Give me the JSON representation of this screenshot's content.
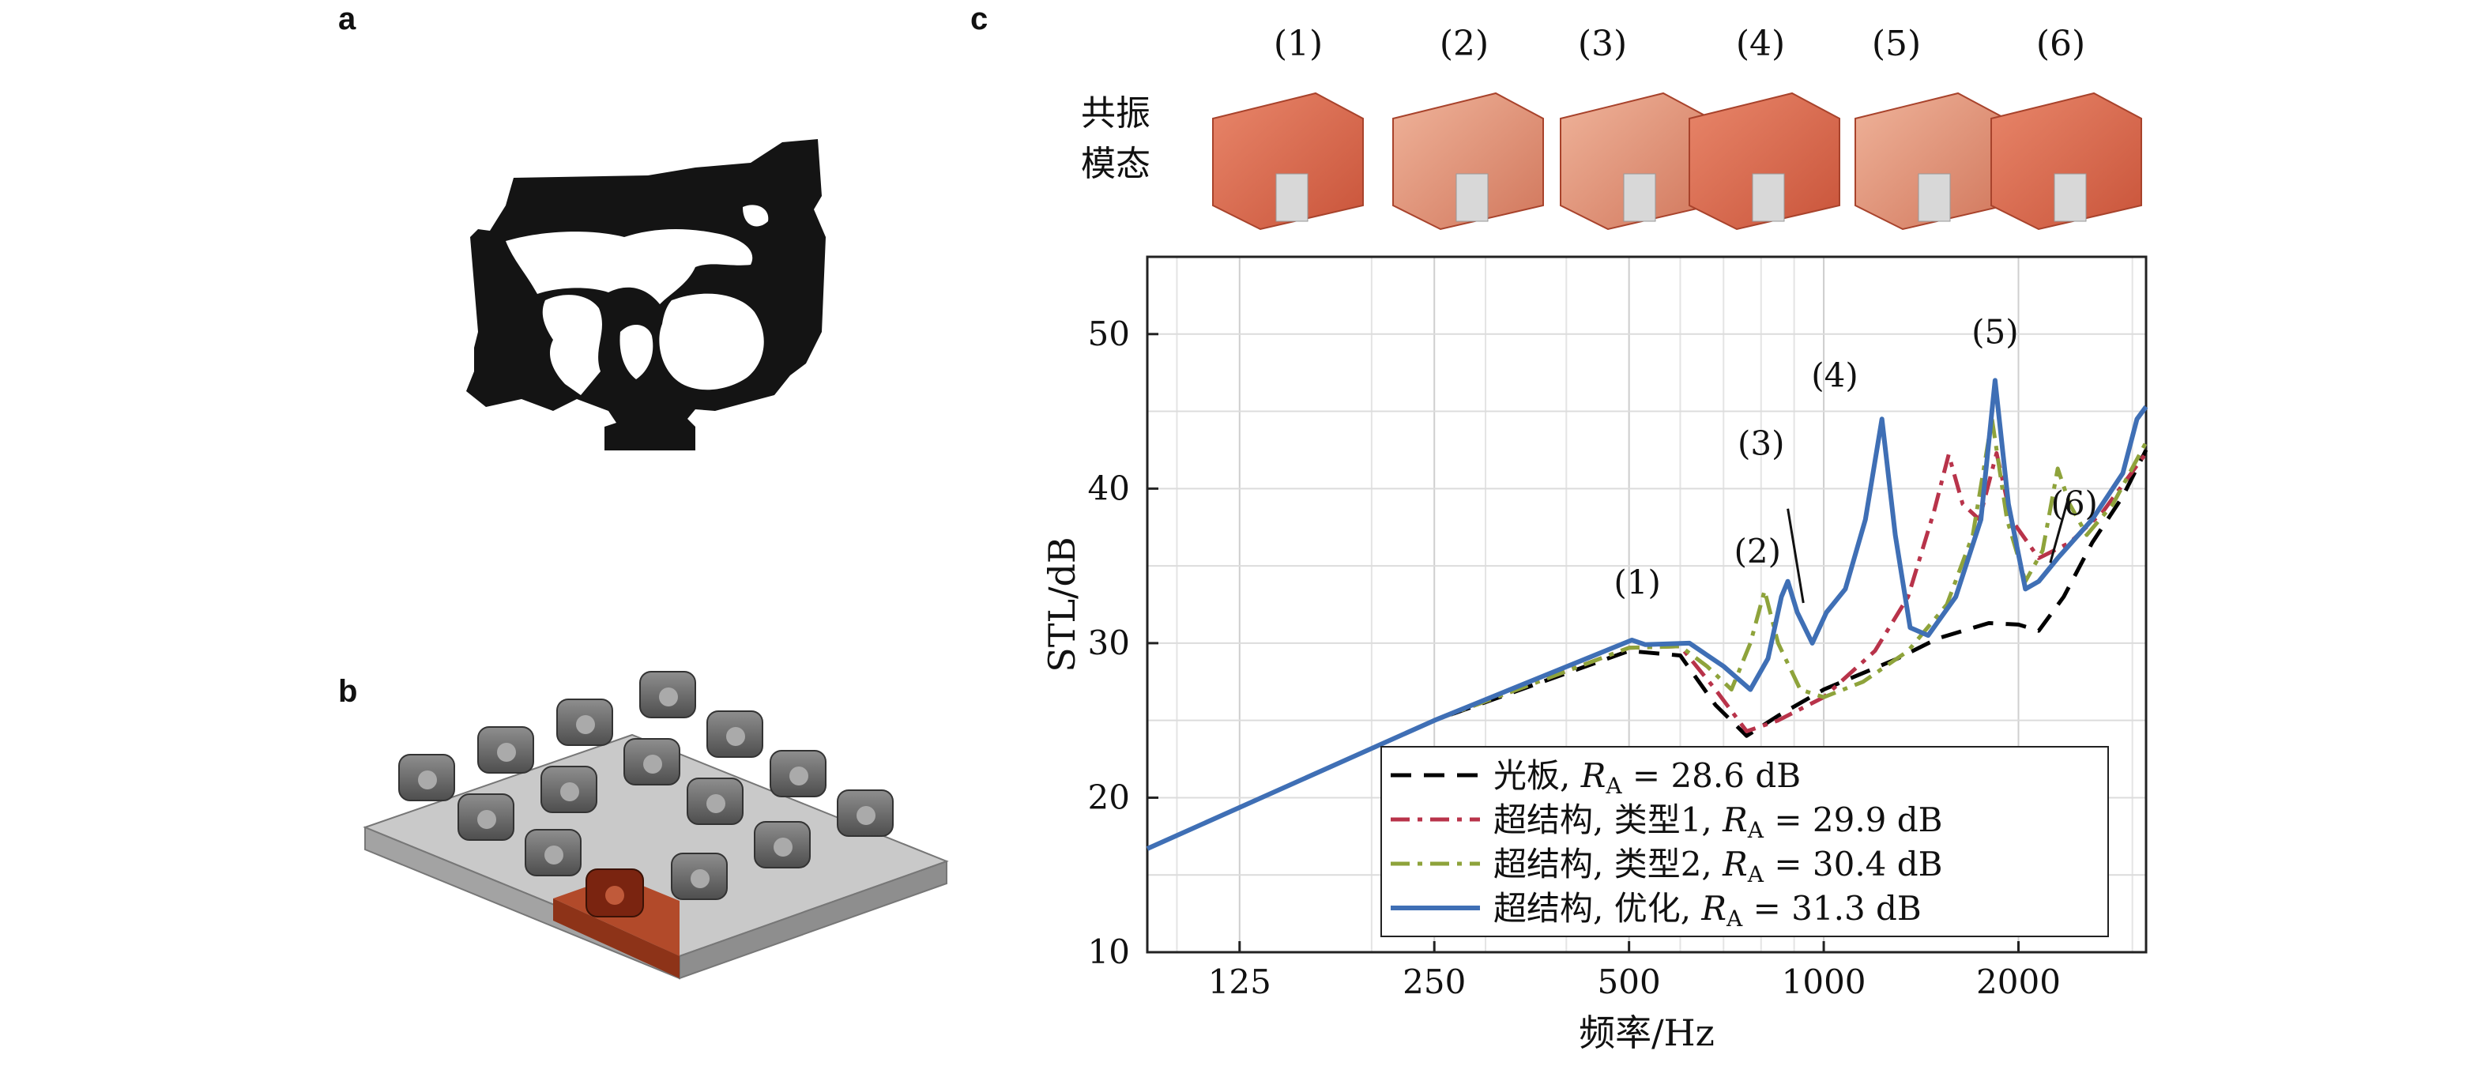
{
  "panels": {
    "a": "a",
    "b": "b",
    "c": "c"
  },
  "modes_label_line1": "共振",
  "modes_label_line2": "模态",
  "mode_labels": [
    "(1)",
    "(2)",
    "(3)",
    "(4)",
    "(5)",
    "(6)"
  ],
  "chart_data": {
    "type": "line",
    "xlabel": "频率/Hz",
    "ylabel": "STL/dB",
    "x_scale": "log",
    "xlim": [
      90,
      3150
    ],
    "ylim": [
      10,
      55
    ],
    "xticks": [
      125,
      250,
      500,
      1000,
      2000
    ],
    "xtick_labels": [
      "125",
      "250",
      "500",
      "1000",
      "2000"
    ],
    "yticks": [
      10,
      20,
      30,
      40,
      50
    ],
    "ytick_labels": [
      "10",
      "20",
      "30",
      "40",
      "50"
    ],
    "grid": true,
    "legend_position": "bottom-right",
    "series": [
      {
        "name_text": "光板, ",
        "name_math": "R",
        "name_sub": "A",
        "name_tail": " = 28.6 dB",
        "color": "#000000",
        "dash": "dashed",
        "points": [
          [
            90,
            16.7
          ],
          [
            250,
            25
          ],
          [
            500,
            29.5
          ],
          [
            600,
            29.2
          ],
          [
            680,
            26
          ],
          [
            760,
            24
          ],
          [
            850,
            25.3
          ],
          [
            1000,
            27
          ],
          [
            1300,
            29
          ],
          [
            1500,
            30.3
          ],
          [
            1800,
            31.3
          ],
          [
            2000,
            31.2
          ],
          [
            2150,
            30.8
          ],
          [
            2350,
            33
          ],
          [
            2600,
            36.5
          ],
          [
            2900,
            39.5
          ],
          [
            3150,
            42.5
          ]
        ]
      },
      {
        "name_text": "超结构, 类型1, ",
        "name_math": "R",
        "name_sub": "A",
        "name_tail": " = 29.9 dB",
        "color": "#b8334a",
        "dash": "dashdot",
        "points": [
          [
            90,
            16.7
          ],
          [
            250,
            25
          ],
          [
            500,
            29.7
          ],
          [
            600,
            29.8
          ],
          [
            680,
            27
          ],
          [
            760,
            24.3
          ],
          [
            850,
            25
          ],
          [
            1000,
            26.5
          ],
          [
            1200,
            29.5
          ],
          [
            1350,
            33
          ],
          [
            1480,
            38.5
          ],
          [
            1560,
            42.2
          ],
          [
            1640,
            39
          ],
          [
            1740,
            38
          ],
          [
            1850,
            42.3
          ],
          [
            1950,
            38
          ],
          [
            2150,
            35.5
          ],
          [
            2400,
            36.5
          ],
          [
            2700,
            38.5
          ],
          [
            3150,
            42.3
          ]
        ]
      },
      {
        "name_text": "超结构, 类型2, ",
        "name_math": "R",
        "name_sub": "A",
        "name_tail": " = 30.4 dB",
        "color": "#8ea33b",
        "dash": "dashdot",
        "points": [
          [
            90,
            16.7
          ],
          [
            250,
            25
          ],
          [
            500,
            29.7
          ],
          [
            600,
            29.8
          ],
          [
            660,
            28.5
          ],
          [
            720,
            27
          ],
          [
            770,
            30
          ],
          [
            810,
            33.4
          ],
          [
            850,
            30
          ],
          [
            920,
            27
          ],
          [
            1000,
            26.5
          ],
          [
            1150,
            27.5
          ],
          [
            1350,
            29.5
          ],
          [
            1550,
            32.5
          ],
          [
            1700,
            37
          ],
          [
            1820,
            44.5
          ],
          [
            1920,
            38
          ],
          [
            2050,
            34
          ],
          [
            2180,
            36
          ],
          [
            2300,
            41.3
          ],
          [
            2400,
            39
          ],
          [
            2550,
            37
          ],
          [
            2800,
            39
          ],
          [
            3150,
            43
          ]
        ]
      },
      {
        "name_text": "超结构, 优化, ",
        "name_math": "R",
        "name_sub": "A",
        "name_tail": " = 31.3 dB",
        "color": "#3f6fb5",
        "dash": "solid",
        "points": [
          [
            90,
            16.7
          ],
          [
            250,
            25
          ],
          [
            505,
            30.2
          ],
          [
            530,
            29.9
          ],
          [
            620,
            30
          ],
          [
            700,
            28.5
          ],
          [
            770,
            27
          ],
          [
            820,
            29
          ],
          [
            860,
            33
          ],
          [
            880,
            34
          ],
          [
            910,
            32
          ],
          [
            960,
            30
          ],
          [
            1010,
            32
          ],
          [
            1080,
            33.5
          ],
          [
            1160,
            38
          ],
          [
            1230,
            44.5
          ],
          [
            1290,
            37
          ],
          [
            1360,
            31
          ],
          [
            1450,
            30.5
          ],
          [
            1600,
            33
          ],
          [
            1750,
            38
          ],
          [
            1840,
            47
          ],
          [
            1930,
            39
          ],
          [
            2050,
            33.5
          ],
          [
            2150,
            34
          ],
          [
            2300,
            35.5
          ],
          [
            2600,
            38
          ],
          [
            2900,
            41
          ],
          [
            3050,
            44.5
          ],
          [
            3150,
            45.3
          ]
        ]
      }
    ],
    "annotations": [
      "(1)",
      "(2)",
      "(3)",
      "(4)",
      "(5)",
      "(6)"
    ]
  }
}
